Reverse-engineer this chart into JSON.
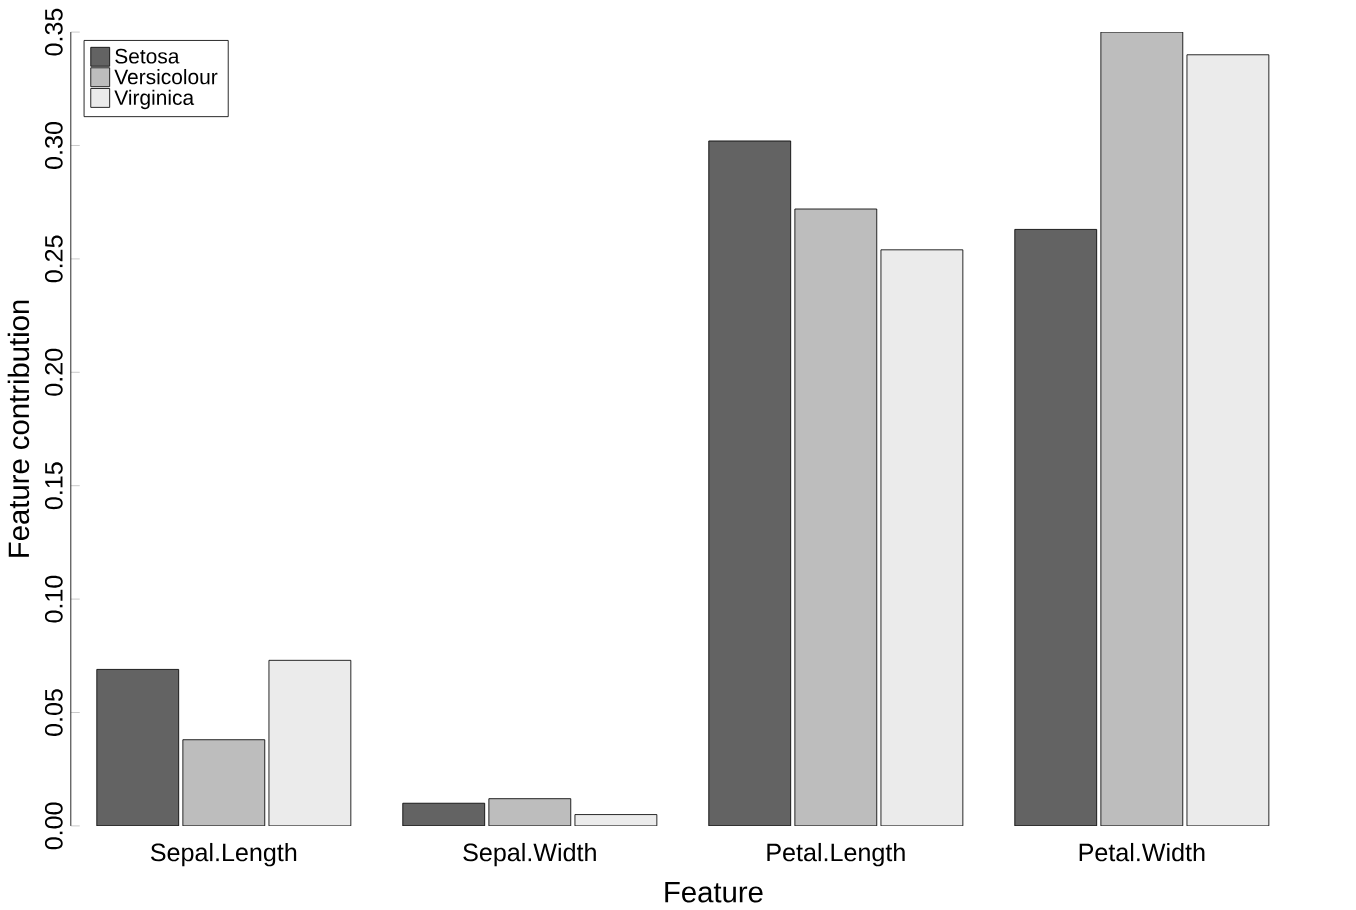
{
  "chart_data": {
    "type": "bar",
    "xlabel": "Feature",
    "ylabel": "Feature contribution",
    "categories": [
      "Sepal.Length",
      "Sepal.Width",
      "Petal.Length",
      "Petal.Width"
    ],
    "series": [
      {
        "name": "Setosa",
        "color": "#636363",
        "values": [
          0.069,
          0.01,
          0.302,
          0.263
        ]
      },
      {
        "name": "Versicolour",
        "color": "#bdbdbd",
        "values": [
          0.038,
          0.012,
          0.272,
          0.35
        ]
      },
      {
        "name": "Virginica",
        "color": "#ebebeb",
        "values": [
          0.073,
          0.005,
          0.254,
          0.34
        ]
      }
    ],
    "ylim": [
      0,
      0.35
    ],
    "yticks": [
      {
        "value": 0,
        "label": "0.00"
      },
      {
        "value": 0.05,
        "label": "0.05"
      },
      {
        "value": 0.1,
        "label": "0.10"
      },
      {
        "value": 0.15,
        "label": "0.15"
      },
      {
        "value": 0.2,
        "label": "0.20"
      },
      {
        "value": 0.25,
        "label": "0.25"
      },
      {
        "value": 0.3,
        "label": "0.30"
      },
      {
        "value": 0.35,
        "label": "0.35"
      }
    ],
    "grid": false,
    "legend": "top left"
  }
}
